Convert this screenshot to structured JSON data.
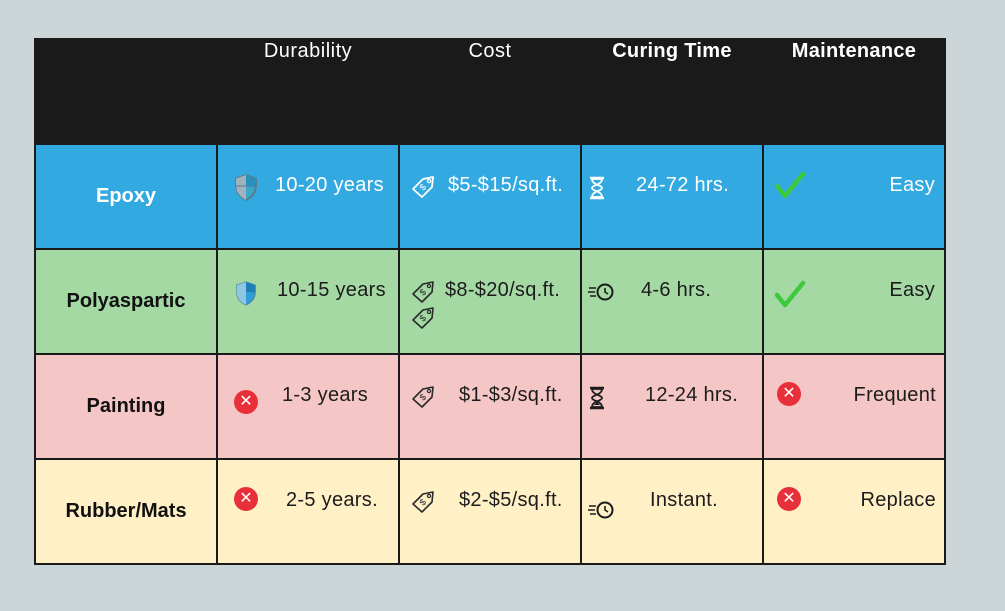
{
  "header": {
    "corner": "",
    "durability": "Durability",
    "cost": "Cost",
    "curing_time": "Curing Time",
    "maintenance": "Maintenance"
  },
  "rows": [
    {
      "name": "Epoxy",
      "durability": "10-20 years",
      "durability_icon": "shield-icon",
      "cost": "$5-$15/sq.ft.",
      "cost_icon": "price-tag-icon",
      "curing_time": "24-72 hrs.",
      "curing_icon": "hourglass-icon",
      "maintenance": "Easy",
      "maintenance_icon": "checkmark-icon",
      "row_color": "#33a9e1"
    },
    {
      "name": "Polyaspartic",
      "durability": "10-15 years",
      "durability_icon": "shield-icon",
      "cost": "$8-$20/sq.ft.",
      "cost_icon": "price-tag-icon",
      "curing_time": "4-6 hrs.",
      "curing_icon": "fast-clock-icon",
      "maintenance": "Easy",
      "maintenance_icon": "checkmark-icon",
      "row_color": "#a4d9a4"
    },
    {
      "name": "Painting",
      "durability": "1-3 years",
      "durability_icon": "x-circle-icon",
      "cost": "$1-$3/sq.ft.",
      "cost_icon": "price-tag-icon",
      "curing_time": "12-24 hrs.",
      "curing_icon": "hourglass-icon",
      "maintenance": "Frequent",
      "maintenance_icon": "x-circle-icon",
      "row_color": "#f5c6c6"
    },
    {
      "name": "Rubber/Mats",
      "durability": "2-5 years.",
      "durability_icon": "x-circle-icon",
      "cost": "$2-$5/sq.ft.",
      "cost_icon": "price-tag-icon",
      "curing_time": "Instant.",
      "curing_icon": "fast-clock-icon",
      "maintenance": "Replace",
      "maintenance_icon": "x-circle-icon",
      "row_color": "#fff0c6"
    }
  ],
  "colors": {
    "header_bg": "#1a1a1a",
    "page_bg": "#ccd5d8",
    "check_green": "#3cc93c",
    "x_red": "#e8303a"
  }
}
